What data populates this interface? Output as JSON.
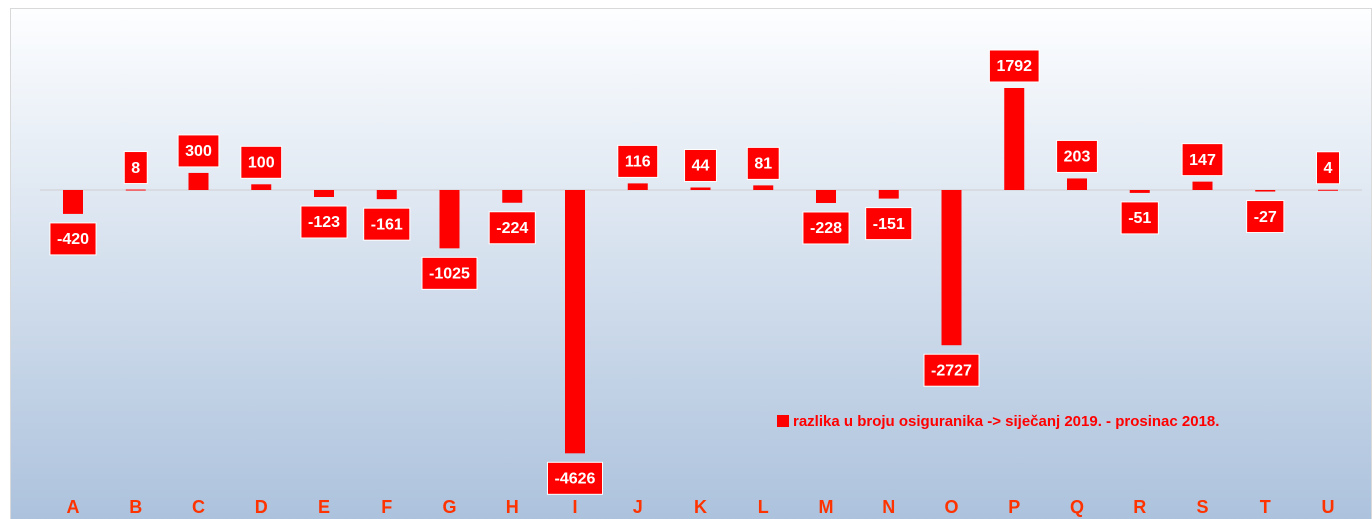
{
  "chart_data": {
    "type": "bar",
    "categories": [
      "A",
      "B",
      "C",
      "D",
      "E",
      "F",
      "G",
      "H",
      "I",
      "J",
      "K",
      "L",
      "M",
      "N",
      "O",
      "P",
      "Q",
      "R",
      "S",
      "T",
      "U"
    ],
    "series": [
      {
        "name": "razlika u broju osiguranika -> siječanj 2019. - prosinac 2018.",
        "color": "#ff0000",
        "values": [
          -420,
          8,
          300,
          100,
          -123,
          -161,
          -1025,
          -224,
          -4626,
          116,
          44,
          81,
          -228,
          -151,
          -2727,
          1792,
          203,
          -51,
          147,
          -27,
          4
        ]
      }
    ],
    "category_color": "#ff3300"
  }
}
